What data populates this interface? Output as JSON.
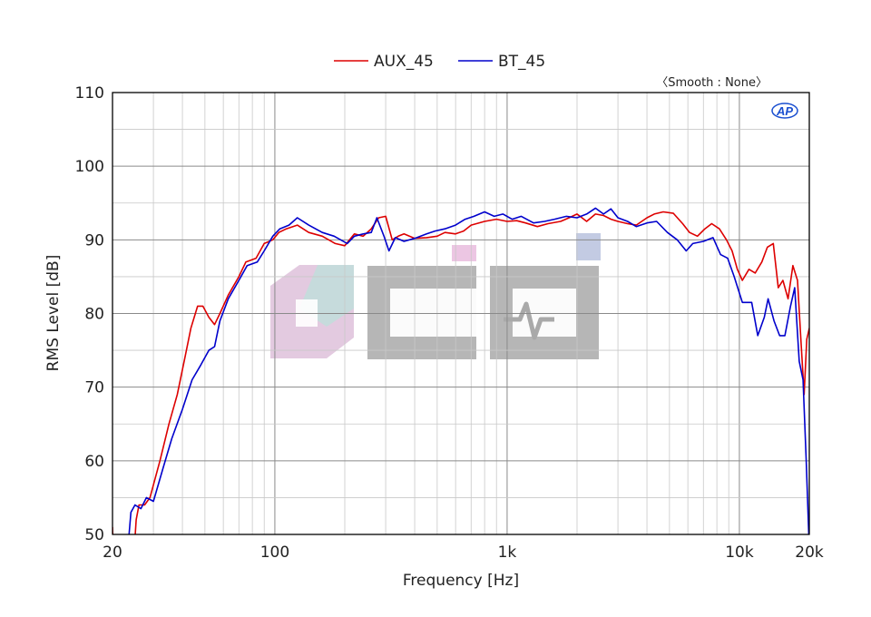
{
  "chart_data": {
    "type": "line",
    "xscale": "log",
    "xlim": [
      20,
      20000
    ],
    "ylim": [
      50,
      110
    ],
    "xlabel": "Frequency [Hz]",
    "ylabel": "RMS Level [dB]",
    "smoothing_note": "〈Smooth : None〉",
    "logo_text": "AP",
    "watermark_text": "CIHI",
    "legend_position": "top-center",
    "grid": true,
    "x_ticks": [
      {
        "value": 20,
        "label": "20"
      },
      {
        "value": 100,
        "label": "100"
      },
      {
        "value": 1000,
        "label": "1k"
      },
      {
        "value": 10000,
        "label": "10k"
      },
      {
        "value": 20000,
        "label": "20k"
      }
    ],
    "y_ticks": [
      {
        "value": 50,
        "label": "50"
      },
      {
        "value": 60,
        "label": "60"
      },
      {
        "value": 70,
        "label": "70"
      },
      {
        "value": 80,
        "label": "80"
      },
      {
        "value": 90,
        "label": "90"
      },
      {
        "value": 100,
        "label": "100"
      },
      {
        "value": 110,
        "label": "110"
      }
    ],
    "series": [
      {
        "name": "AUX_45",
        "color": "#dd0000",
        "points": [
          [
            20,
            51
          ],
          [
            20.05,
            49.5
          ],
          [
            25,
            49.5
          ],
          [
            25.3,
            52
          ],
          [
            26,
            54
          ],
          [
            27.5,
            54
          ],
          [
            29,
            55
          ],
          [
            32,
            60
          ],
          [
            35,
            65
          ],
          [
            38,
            69
          ],
          [
            41,
            74
          ],
          [
            43.5,
            78
          ],
          [
            46.5,
            81
          ],
          [
            49,
            81
          ],
          [
            52,
            79.5
          ],
          [
            55,
            78.5
          ],
          [
            58,
            80
          ],
          [
            63,
            82.5
          ],
          [
            70,
            85
          ],
          [
            75,
            87
          ],
          [
            83,
            87.5
          ],
          [
            90,
            89.5
          ],
          [
            98,
            90
          ],
          [
            104,
            91
          ],
          [
            112,
            91.5
          ],
          [
            125,
            92
          ],
          [
            140,
            91
          ],
          [
            160,
            90.5
          ],
          [
            182,
            89.5
          ],
          [
            200,
            89.2
          ],
          [
            220,
            90.8
          ],
          [
            240,
            90.5
          ],
          [
            260,
            91.5
          ],
          [
            280,
            93
          ],
          [
            300,
            93.2
          ],
          [
            320,
            90
          ],
          [
            340,
            90.5
          ],
          [
            360,
            90.8
          ],
          [
            400,
            90.2
          ],
          [
            450,
            90.3
          ],
          [
            500,
            90.5
          ],
          [
            540,
            91
          ],
          [
            600,
            90.8
          ],
          [
            650,
            91.2
          ],
          [
            700,
            92
          ],
          [
            800,
            92.5
          ],
          [
            900,
            92.8
          ],
          [
            1000,
            92.5
          ],
          [
            1100,
            92.6
          ],
          [
            1200,
            92.3
          ],
          [
            1350,
            91.8
          ],
          [
            1500,
            92.2
          ],
          [
            1700,
            92.5
          ],
          [
            1850,
            93
          ],
          [
            2000,
            93.5
          ],
          [
            2200,
            92.5
          ],
          [
            2400,
            93.5
          ],
          [
            2600,
            93.3
          ],
          [
            2800,
            92.8
          ],
          [
            3000,
            92.5
          ],
          [
            3300,
            92.2
          ],
          [
            3600,
            92
          ],
          [
            4000,
            93
          ],
          [
            4300,
            93.5
          ],
          [
            4700,
            93.8
          ],
          [
            5200,
            93.6
          ],
          [
            5700,
            92.2
          ],
          [
            6100,
            91
          ],
          [
            6600,
            90.5
          ],
          [
            7100,
            91.5
          ],
          [
            7600,
            92.2
          ],
          [
            8200,
            91.5
          ],
          [
            8800,
            90
          ],
          [
            9300,
            88.5
          ],
          [
            9800,
            86
          ],
          [
            10300,
            84.5
          ],
          [
            11000,
            86
          ],
          [
            11700,
            85.5
          ],
          [
            12500,
            87
          ],
          [
            13200,
            89
          ],
          [
            14000,
            89.5
          ],
          [
            14700,
            83.5
          ],
          [
            15400,
            84.5
          ],
          [
            16200,
            82
          ],
          [
            17000,
            86.5
          ],
          [
            17800,
            84.5
          ],
          [
            18400,
            76.5
          ],
          [
            19000,
            69
          ],
          [
            19500,
            76.5
          ],
          [
            20000,
            78
          ]
        ]
      },
      {
        "name": "BT_45",
        "color": "#0000cc",
        "points": [
          [
            23.5,
            49.5
          ],
          [
            24,
            53
          ],
          [
            25,
            54
          ],
          [
            26.5,
            53.5
          ],
          [
            28,
            55
          ],
          [
            30,
            54.5
          ],
          [
            33,
            59
          ],
          [
            36,
            63
          ],
          [
            40,
            67
          ],
          [
            44,
            71
          ],
          [
            48,
            73
          ],
          [
            52,
            75
          ],
          [
            55,
            75.5
          ],
          [
            58,
            79
          ],
          [
            63,
            82
          ],
          [
            70,
            84.5
          ],
          [
            76,
            86.5
          ],
          [
            84,
            87
          ],
          [
            90,
            88.5
          ],
          [
            98,
            90.5
          ],
          [
            105,
            91.5
          ],
          [
            115,
            92
          ],
          [
            125,
            93
          ],
          [
            140,
            92
          ],
          [
            160,
            91
          ],
          [
            180,
            90.5
          ],
          [
            205,
            89.5
          ],
          [
            220,
            90.5
          ],
          [
            240,
            90.8
          ],
          [
            260,
            91
          ],
          [
            275,
            93
          ],
          [
            295,
            90.5
          ],
          [
            310,
            88.5
          ],
          [
            330,
            90.3
          ],
          [
            360,
            89.8
          ],
          [
            400,
            90.2
          ],
          [
            450,
            90.8
          ],
          [
            490,
            91.2
          ],
          [
            540,
            91.5
          ],
          [
            600,
            92
          ],
          [
            660,
            92.8
          ],
          [
            720,
            93.2
          ],
          [
            800,
            93.8
          ],
          [
            880,
            93.2
          ],
          [
            960,
            93.5
          ],
          [
            1050,
            92.8
          ],
          [
            1150,
            93.2
          ],
          [
            1300,
            92.3
          ],
          [
            1450,
            92.5
          ],
          [
            1600,
            92.8
          ],
          [
            1800,
            93.2
          ],
          [
            2000,
            93
          ],
          [
            2200,
            93.5
          ],
          [
            2400,
            94.3
          ],
          [
            2600,
            93.5
          ],
          [
            2800,
            94.2
          ],
          [
            3000,
            93
          ],
          [
            3300,
            92.5
          ],
          [
            3600,
            91.8
          ],
          [
            4000,
            92.3
          ],
          [
            4400,
            92.5
          ],
          [
            4900,
            91
          ],
          [
            5400,
            90
          ],
          [
            5900,
            88.5
          ],
          [
            6300,
            89.5
          ],
          [
            7000,
            89.8
          ],
          [
            7700,
            90.3
          ],
          [
            8300,
            88
          ],
          [
            8900,
            87.5
          ],
          [
            9500,
            85
          ],
          [
            10300,
            81.5
          ],
          [
            11300,
            81.5
          ],
          [
            12000,
            77
          ],
          [
            12800,
            79.5
          ],
          [
            13300,
            82
          ],
          [
            14100,
            79
          ],
          [
            14900,
            77
          ],
          [
            15700,
            77
          ],
          [
            16600,
            81
          ],
          [
            17300,
            83.5
          ],
          [
            18100,
            73.5
          ],
          [
            18800,
            71
          ],
          [
            19400,
            60
          ],
          [
            19900,
            50
          ]
        ]
      }
    ]
  }
}
